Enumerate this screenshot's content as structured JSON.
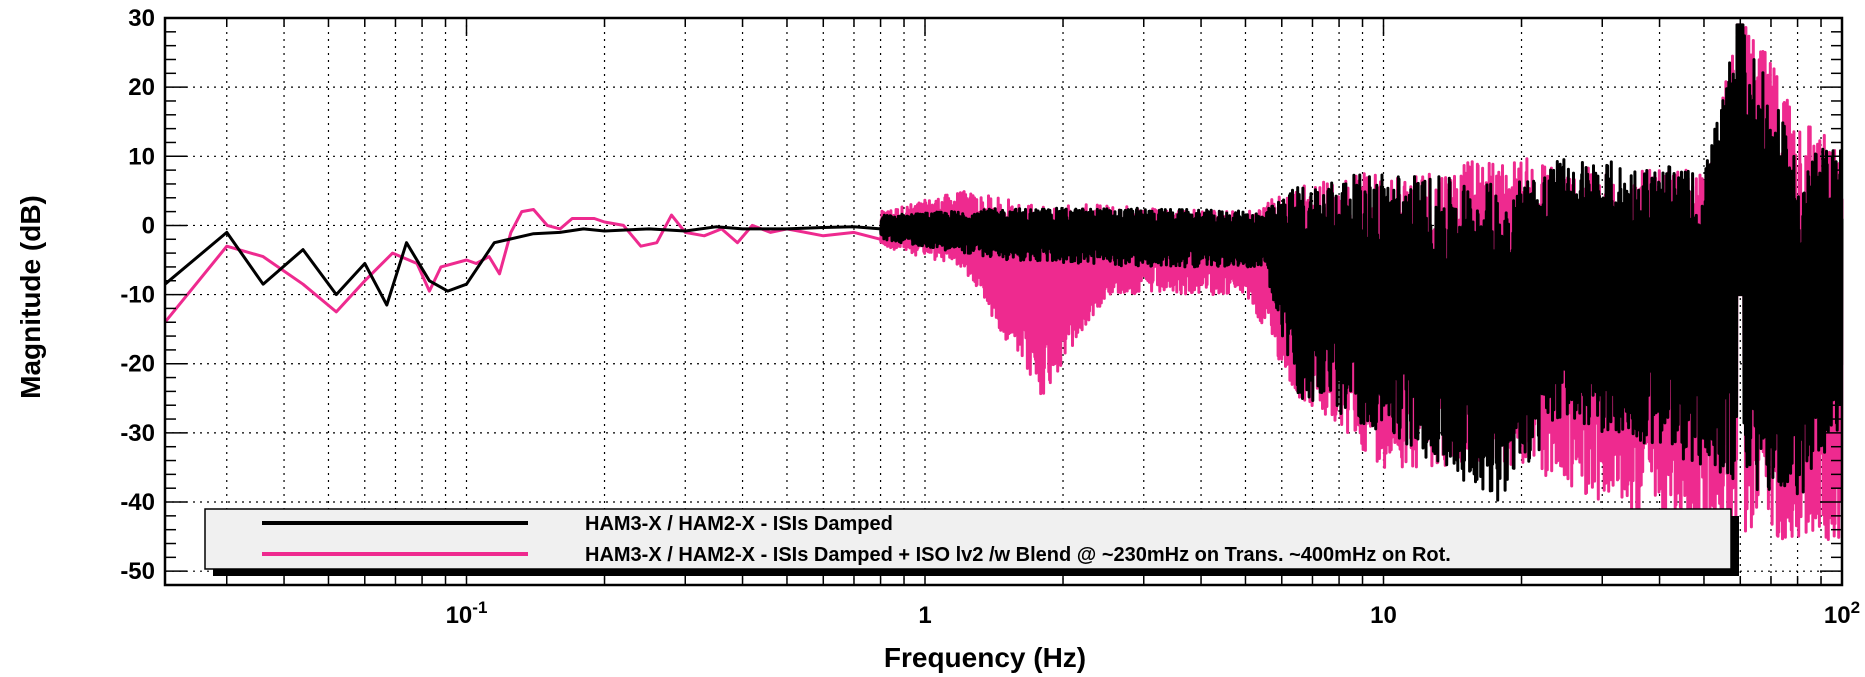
{
  "chart_data": {
    "type": "line",
    "title": "",
    "xlabel": "Frequency (Hz)",
    "ylabel": "Magnitude (dB)",
    "xscale": "log",
    "xlim": [
      0.022,
      100
    ],
    "ylim": [
      -52,
      30
    ],
    "grid": true,
    "legend_position": "bottom",
    "x_tick_labels": [
      {
        "value": 0.1,
        "base": "10",
        "exp": "-1"
      },
      {
        "value": 1,
        "base": "1",
        "exp": ""
      },
      {
        "value": 10,
        "base": "10",
        "exp": ""
      },
      {
        "value": 100,
        "base": "10",
        "exp": "2"
      }
    ],
    "y_ticks": [
      30,
      20,
      10,
      0,
      -10,
      -20,
      -30,
      -40,
      -50
    ],
    "y_tick_labels": [
      "30",
      "20",
      "10",
      "0",
      "-10",
      "-20",
      "-30",
      "-40",
      "-50"
    ],
    "series": [
      {
        "name": "HAM3-X / HAM2-X - ISIs Damped",
        "color": "#000000",
        "envelope": [
          [
            0.8,
            1.5,
            -2
          ],
          [
            1.5,
            2.5,
            -5
          ],
          [
            3,
            2.5,
            -6
          ],
          [
            5.5,
            2,
            -6
          ],
          [
            6.5,
            6,
            -25
          ],
          [
            10,
            8,
            -30
          ],
          [
            18,
            6,
            -40
          ],
          [
            25,
            10,
            -28
          ],
          [
            50,
            8,
            -35
          ],
          [
            60,
            30,
            -38
          ],
          [
            80,
            10,
            -40
          ],
          [
            100,
            12,
            -30
          ]
        ],
        "values": [
          [
            0.022,
            -8.5
          ],
          [
            0.03,
            -1
          ],
          [
            0.036,
            -8.5
          ],
          [
            0.044,
            -3.5
          ],
          [
            0.052,
            -10
          ],
          [
            0.06,
            -5.5
          ],
          [
            0.067,
            -11.5
          ],
          [
            0.074,
            -2.5
          ],
          [
            0.083,
            -8
          ],
          [
            0.091,
            -9.5
          ],
          [
            0.1,
            -8.5
          ],
          [
            0.115,
            -2.5
          ],
          [
            0.14,
            -1.2
          ],
          [
            0.16,
            -1
          ],
          [
            0.18,
            -0.5
          ],
          [
            0.2,
            -0.8
          ],
          [
            0.25,
            -0.5
          ],
          [
            0.3,
            -0.8
          ],
          [
            0.35,
            -0.2
          ],
          [
            0.4,
            -0.5
          ],
          [
            0.5,
            -0.5
          ],
          [
            0.6,
            -0.3
          ],
          [
            0.7,
            -0.2
          ],
          [
            0.8,
            -0.5
          ]
        ]
      },
      {
        "name": "HAM3-X / HAM2-X - ISIs Damped + ISO lv2 /w Blend @ ~230mHz on Trans. ~400mHz on Rot.",
        "color": "#ee2a8f",
        "envelope": [
          [
            0.8,
            2,
            -3
          ],
          [
            1.2,
            5,
            -6
          ],
          [
            1.8,
            3,
            -25
          ],
          [
            2.5,
            3,
            -10
          ],
          [
            5,
            2,
            -10
          ],
          [
            6.5,
            6,
            -25
          ],
          [
            10,
            8,
            -35
          ],
          [
            20,
            10,
            -35
          ],
          [
            30,
            8,
            -40
          ],
          [
            50,
            8,
            -45
          ],
          [
            60,
            30,
            -45
          ],
          [
            100,
            10,
            -46
          ]
        ],
        "values": [
          [
            0.022,
            -14
          ],
          [
            0.03,
            -3
          ],
          [
            0.036,
            -4.5
          ],
          [
            0.044,
            -8.5
          ],
          [
            0.052,
            -12.5
          ],
          [
            0.06,
            -8
          ],
          [
            0.069,
            -4
          ],
          [
            0.078,
            -5.5
          ],
          [
            0.083,
            -9.5
          ],
          [
            0.088,
            -6
          ],
          [
            0.1,
            -5
          ],
          [
            0.105,
            -5.5
          ],
          [
            0.112,
            -4.5
          ],
          [
            0.118,
            -7
          ],
          [
            0.125,
            -1
          ],
          [
            0.132,
            2
          ],
          [
            0.14,
            2.3
          ],
          [
            0.15,
            0
          ],
          [
            0.16,
            -0.5
          ],
          [
            0.17,
            1
          ],
          [
            0.19,
            1
          ],
          [
            0.2,
            0.5
          ],
          [
            0.22,
            0
          ],
          [
            0.24,
            -3
          ],
          [
            0.26,
            -2.5
          ],
          [
            0.28,
            1.5
          ],
          [
            0.3,
            -1
          ],
          [
            0.33,
            -1.5
          ],
          [
            0.36,
            -0.5
          ],
          [
            0.39,
            -2.5
          ],
          [
            0.42,
            0
          ],
          [
            0.46,
            -1
          ],
          [
            0.5,
            -0.5
          ],
          [
            0.6,
            -1.5
          ],
          [
            0.7,
            -1
          ],
          [
            0.8,
            -2
          ]
        ]
      }
    ]
  }
}
